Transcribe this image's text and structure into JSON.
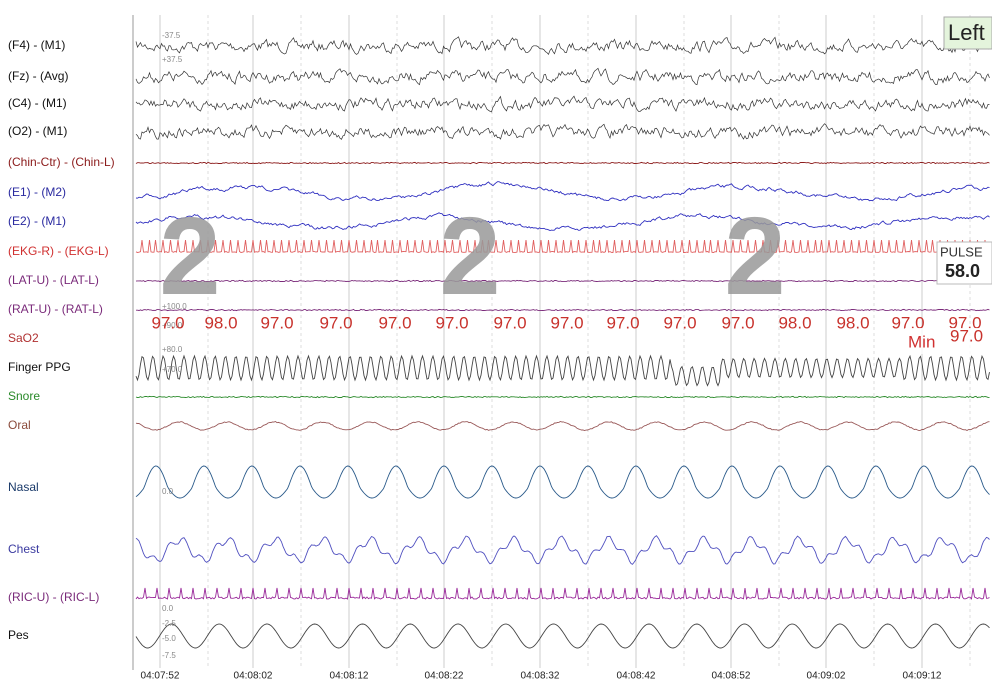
{
  "channels": [
    {
      "label": "(F4) - (M1)"
    },
    {
      "label": "(Fz) - (Avg)"
    },
    {
      "label": "(C4) - (M1)"
    },
    {
      "label": "(O2) - (M1)"
    },
    {
      "label": "(Chin-Ctr) - (Chin-L)"
    },
    {
      "label": "(E1) - (M2)"
    },
    {
      "label": "(E2) - (M1)"
    },
    {
      "label": "(EKG-R) - (EKG-L)"
    },
    {
      "label": "(LAT-U) - (LAT-L)"
    },
    {
      "label": "(RAT-U) - (RAT-L)"
    },
    {
      "label": "SaO2"
    },
    {
      "label": "Finger PPG"
    },
    {
      "label": "Snore"
    },
    {
      "label": "Oral"
    },
    {
      "label": "Nasal"
    },
    {
      "label": "Chest"
    },
    {
      "label": "(RIC-U) - (RIC-L)"
    },
    {
      "label": "Pes"
    }
  ],
  "scale_labels": [
    "-37.5",
    "+37.5",
    "+100.0",
    "+90.0",
    "+80.0",
    "+70.0",
    "0.0",
    "0.0",
    "-2.5",
    "-5.0",
    "-7.5"
  ],
  "time_labels": [
    "04:07:52",
    "04:08:02",
    "04:08:12",
    "04:08:22",
    "04:08:32",
    "04:08:42",
    "04:08:52",
    "04:09:02",
    "04:09:12"
  ],
  "sao2_values": [
    "97.0",
    "98.0",
    "97.0",
    "97.0",
    "97.0",
    "97.0",
    "97.0",
    "97.0",
    "97.0",
    "97.0",
    "97.0",
    "98.0",
    "98.0",
    "97.0",
    "97.0"
  ],
  "stage_labels": [
    "2",
    "2",
    "2"
  ],
  "position": "Left",
  "pulse": {
    "label": "PULSE",
    "value": "58.0"
  },
  "sao2_min": {
    "label": "Min",
    "value": "97.0"
  }
}
